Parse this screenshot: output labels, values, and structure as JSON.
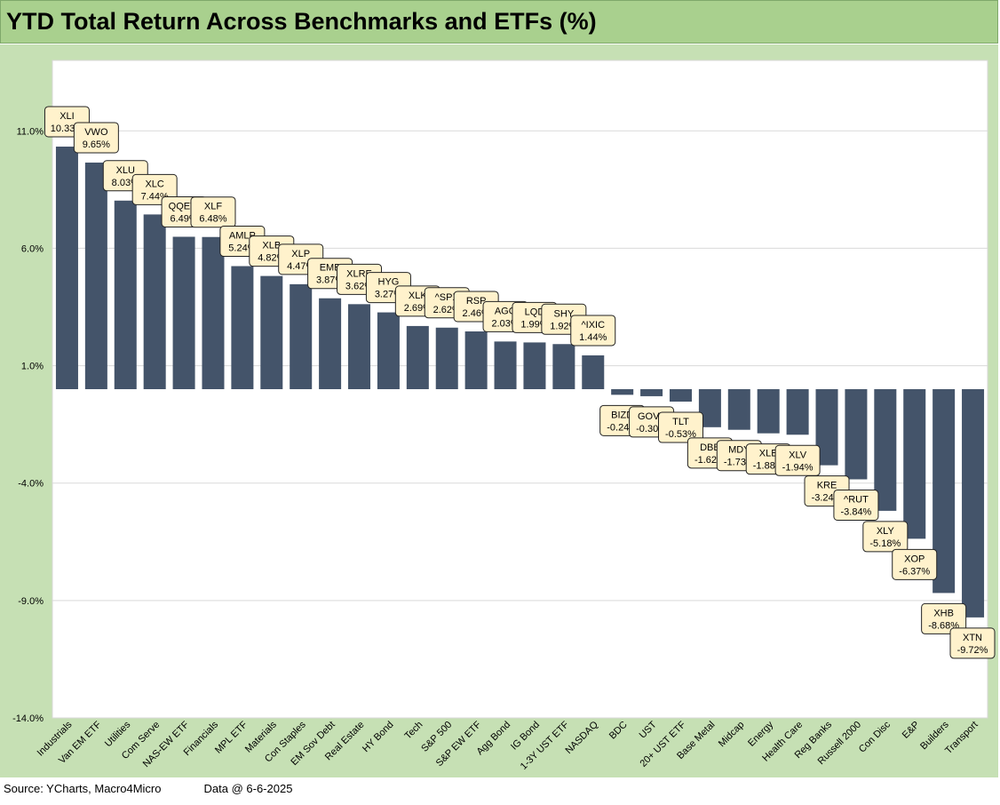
{
  "title": "YTD Total Return Across Benchmarks and ETFs (%)",
  "footer": {
    "source": "Source: YCharts, Macro4Micro",
    "data_date": "Data @ 6-6-2025"
  },
  "colors": {
    "title_band": "#a9d08e",
    "background": "#c6e0b4",
    "plot_area": "#ffffff",
    "bar": "#44546a",
    "label_box": "#fff2cc"
  },
  "chart_data": {
    "type": "bar",
    "title": "YTD Total Return Across Benchmarks and ETFs (%)",
    "xlabel": "",
    "ylabel": "",
    "ylim": [
      -14,
      14
    ],
    "yticks": [
      11,
      6,
      1,
      -4,
      -9,
      -14
    ],
    "ytick_labels": [
      "11.0%",
      "6.0%",
      "1.0%",
      "-4.0%",
      "-9.0%",
      "-14.0%"
    ],
    "grid": true,
    "legend": "none",
    "categories": [
      "Industrials",
      "Van EM ETF",
      "Utilities",
      "Com Serve",
      "NAS-EW ETF",
      "Financials",
      "MPL ETF",
      "Materials",
      "Con Staples",
      "EM Sov Debt",
      "Real Estate",
      "HY Bond",
      "Tech",
      "S&P 500",
      "S&P EW ETF",
      "Agg Bond",
      "IG Bond",
      "1-3Y UST ETF",
      "NASDAQ",
      "BDC",
      "UST",
      "20+ UST ETF",
      "Base Metal",
      "Midcap",
      "Energy",
      "Health Care",
      "Reg Banks",
      "Russell 2000",
      "Con Disc",
      "E&P",
      "Builders",
      "Transport"
    ],
    "tickers": [
      "XLI",
      "VWO",
      "XLU",
      "XLC",
      "QQEW",
      "XLF",
      "AMLP",
      "XLB",
      "XLP",
      "EMB",
      "XLRE",
      "HYG",
      "XLK",
      "^SPX",
      "RSP",
      "AGG",
      "LQD",
      "SHY",
      "^IXIC",
      "BIZD",
      "GOVT",
      "TLT",
      "DBB",
      "MDY",
      "XLE",
      "XLV",
      "KRE",
      "^RUT",
      "XLY",
      "XOP",
      "XHB",
      "XTN"
    ],
    "values": [
      10.33,
      9.65,
      8.03,
      7.44,
      6.49,
      6.48,
      5.24,
      4.82,
      4.47,
      3.87,
      3.62,
      3.27,
      2.69,
      2.62,
      2.46,
      2.03,
      1.99,
      1.92,
      1.44,
      -0.24,
      -0.3,
      -0.53,
      -1.62,
      -1.73,
      -1.88,
      -1.94,
      -3.24,
      -3.84,
      -5.18,
      -6.37,
      -8.68,
      -9.72
    ],
    "data_labels": [
      "10.33%",
      "9.65%",
      "8.03%",
      "7.44%",
      "6.49%",
      "6.48%",
      "5.24%",
      "4.82%",
      "4.47%",
      "3.87%",
      "3.62%",
      "3.27%",
      "2.69%",
      "2.62%",
      "2.46%",
      "2.03%",
      "1.99%",
      "1.92%",
      "1.44%",
      "-0.24%",
      "-0.30%",
      "-0.53%",
      "-1.62%",
      "-1.73%",
      "-1.88%",
      "-1.94%",
      "-3.24%",
      "-3.84%",
      "-5.18%",
      "-6.37%",
      "-8.68%",
      "-9.72%"
    ]
  }
}
